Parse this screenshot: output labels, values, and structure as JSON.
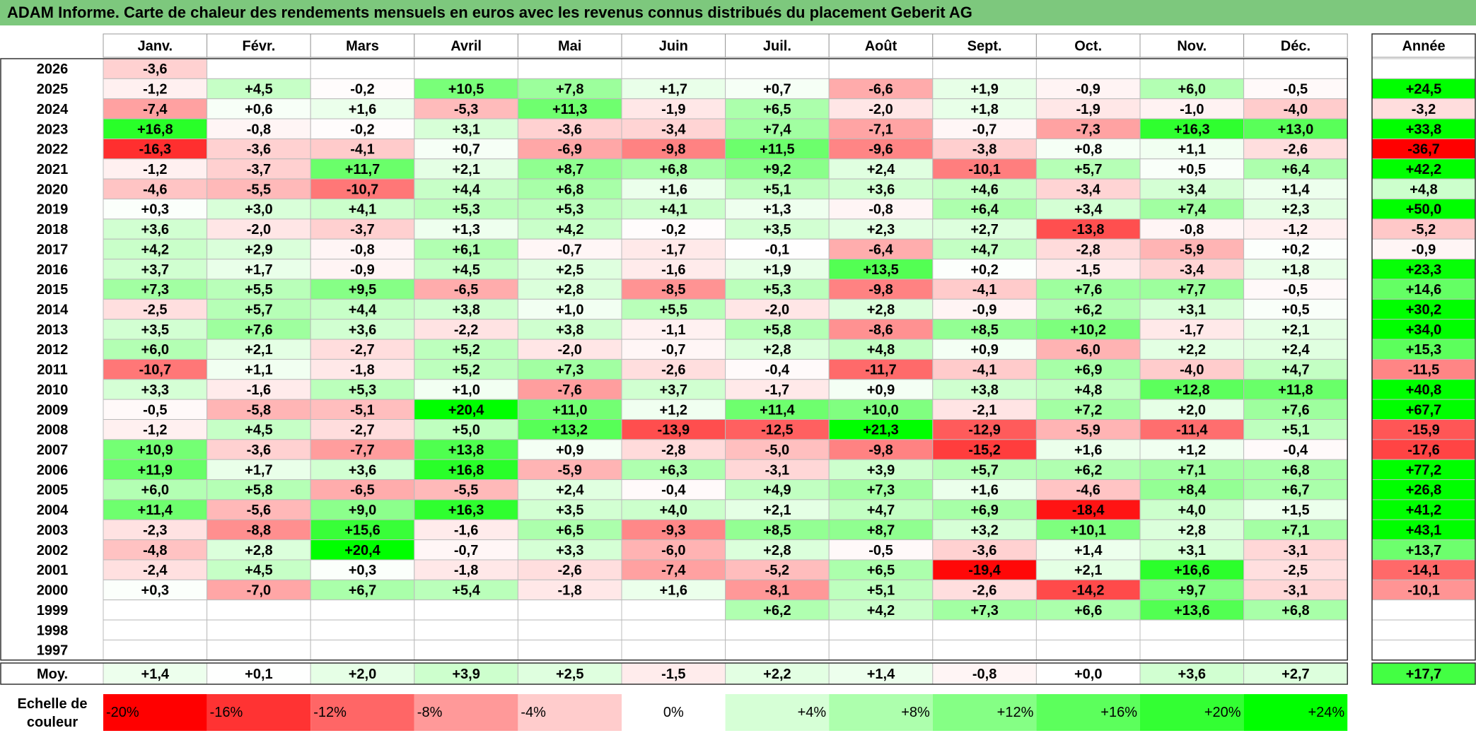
{
  "title": "ADAM Informe. Carte de chaleur des rendements mensuels en euros avec les revenus connus distribués du placement Geberit AG",
  "chart_data": {
    "type": "heatmap",
    "title": "ADAM Informe. Carte de chaleur des rendements mensuels en euros avec les revenus connus distribués du placement Geberit AG",
    "months": [
      "Janv.",
      "Févr.",
      "Mars",
      "Avril",
      "Mai",
      "Juin",
      "Juil.",
      "Août",
      "Sept.",
      "Oct.",
      "Nov.",
      "Déc."
    ],
    "year_header": "Année",
    "rows": [
      {
        "year": "2026",
        "values": [
          "-3,6",
          "",
          "",
          "",
          "",
          "",
          "",
          "",
          "",
          "",
          "",
          ""
        ],
        "annual": ""
      },
      {
        "year": "2025",
        "values": [
          "-1,2",
          "+4,5",
          "-0,2",
          "+10,5",
          "+7,8",
          "+1,7",
          "+0,7",
          "-6,6",
          "+1,9",
          "-0,9",
          "+6,0",
          "-0,5"
        ],
        "annual": "+24,5"
      },
      {
        "year": "2024",
        "values": [
          "-7,4",
          "+0,6",
          "+1,6",
          "-5,3",
          "+11,3",
          "-1,9",
          "+6,5",
          "-2,0",
          "+1,8",
          "-1,9",
          "-1,0",
          "-4,0"
        ],
        "annual": "-3,2"
      },
      {
        "year": "2023",
        "values": [
          "+16,8",
          "-0,8",
          "-0,2",
          "+3,1",
          "-3,6",
          "-3,4",
          "+7,4",
          "-7,1",
          "-0,7",
          "-7,3",
          "+16,3",
          "+13,0"
        ],
        "annual": "+33,8"
      },
      {
        "year": "2022",
        "values": [
          "-16,3",
          "-3,6",
          "-4,1",
          "+0,7",
          "-6,9",
          "-9,8",
          "+11,5",
          "-9,6",
          "-3,8",
          "+0,8",
          "+1,1",
          "-2,6"
        ],
        "annual": "-36,7"
      },
      {
        "year": "2021",
        "values": [
          "-1,2",
          "-3,7",
          "+11,7",
          "+2,1",
          "+8,7",
          "+6,8",
          "+9,2",
          "+2,4",
          "-10,1",
          "+5,7",
          "+0,5",
          "+6,4"
        ],
        "annual": "+42,2"
      },
      {
        "year": "2020",
        "values": [
          "-4,6",
          "-5,5",
          "-10,7",
          "+4,4",
          "+6,8",
          "+1,6",
          "+5,1",
          "+3,6",
          "+4,6",
          "-3,4",
          "+3,4",
          "+1,4"
        ],
        "annual": "+4,8"
      },
      {
        "year": "2019",
        "values": [
          "+0,3",
          "+3,0",
          "+4,1",
          "+5,3",
          "+5,3",
          "+4,1",
          "+1,3",
          "-0,8",
          "+6,4",
          "+3,4",
          "+7,4",
          "+2,3"
        ],
        "annual": "+50,0"
      },
      {
        "year": "2018",
        "values": [
          "+3,6",
          "-2,0",
          "-3,7",
          "+1,3",
          "+4,2",
          "-0,2",
          "+3,5",
          "+2,3",
          "+2,7",
          "-13,8",
          "-0,8",
          "-1,2"
        ],
        "annual": "-5,2"
      },
      {
        "year": "2017",
        "values": [
          "+4,2",
          "+2,9",
          "-0,8",
          "+6,1",
          "-0,7",
          "-1,7",
          "-0,1",
          "-6,4",
          "+4,7",
          "-2,8",
          "-5,9",
          "+0,2"
        ],
        "annual": "-0,9"
      },
      {
        "year": "2016",
        "values": [
          "+3,7",
          "+1,7",
          "-0,9",
          "+4,5",
          "+2,5",
          "-1,6",
          "+1,9",
          "+13,5",
          "+0,2",
          "-1,5",
          "-3,4",
          "+1,8"
        ],
        "annual": "+23,3"
      },
      {
        "year": "2015",
        "values": [
          "+7,3",
          "+5,5",
          "+9,5",
          "-6,5",
          "+2,8",
          "-8,5",
          "+5,3",
          "-9,8",
          "-4,1",
          "+7,6",
          "+7,7",
          "-0,5"
        ],
        "annual": "+14,6"
      },
      {
        "year": "2014",
        "values": [
          "-2,5",
          "+5,7",
          "+4,4",
          "+3,8",
          "+1,0",
          "+5,5",
          "-2,0",
          "+2,8",
          "-0,9",
          "+6,2",
          "+3,1",
          "+0,5"
        ],
        "annual": "+30,2"
      },
      {
        "year": "2013",
        "values": [
          "+3,5",
          "+7,6",
          "+3,6",
          "-2,2",
          "+3,8",
          "-1,1",
          "+5,8",
          "-8,6",
          "+8,5",
          "+10,2",
          "-1,7",
          "+2,1"
        ],
        "annual": "+34,0"
      },
      {
        "year": "2012",
        "values": [
          "+6,0",
          "+2,1",
          "-2,7",
          "+5,2",
          "-2,0",
          "-0,7",
          "+2,8",
          "+4,8",
          "+0,9",
          "-6,0",
          "+2,2",
          "+2,4"
        ],
        "annual": "+15,3"
      },
      {
        "year": "2011",
        "values": [
          "-10,7",
          "+1,1",
          "-1,8",
          "+5,2",
          "+7,3",
          "-2,6",
          "-0,4",
          "-11,7",
          "-4,1",
          "+6,9",
          "-4,0",
          "+4,7"
        ],
        "annual": "-11,5"
      },
      {
        "year": "2010",
        "values": [
          "+3,3",
          "-1,6",
          "+5,3",
          "+1,0",
          "-7,6",
          "+3,7",
          "-1,7",
          "+0,9",
          "+3,8",
          "+4,8",
          "+12,8",
          "+11,8"
        ],
        "annual": "+40,8"
      },
      {
        "year": "2009",
        "values": [
          "-0,5",
          "-5,8",
          "-5,1",
          "+20,4",
          "+11,0",
          "+1,2",
          "+11,4",
          "+10,0",
          "-2,1",
          "+7,2",
          "+2,0",
          "+7,6"
        ],
        "annual": "+67,7"
      },
      {
        "year": "2008",
        "values": [
          "-1,2",
          "+4,5",
          "-2,7",
          "+5,0",
          "+13,2",
          "-13,9",
          "-12,5",
          "+21,3",
          "-12,9",
          "-5,9",
          "-11,4",
          "+5,1"
        ],
        "annual": "-15,9"
      },
      {
        "year": "2007",
        "values": [
          "+10,9",
          "-3,6",
          "-7,7",
          "+13,8",
          "+0,9",
          "-2,8",
          "-5,0",
          "-9,8",
          "-15,2",
          "+1,6",
          "+1,2",
          "-0,4"
        ],
        "annual": "-17,6"
      },
      {
        "year": "2006",
        "values": [
          "+11,9",
          "+1,7",
          "+3,6",
          "+16,8",
          "-5,9",
          "+6,3",
          "-3,1",
          "+3,9",
          "+5,7",
          "+6,2",
          "+7,1",
          "+6,8"
        ],
        "annual": "+77,2"
      },
      {
        "year": "2005",
        "values": [
          "+6,0",
          "+5,8",
          "-6,5",
          "-5,5",
          "+2,4",
          "-0,4",
          "+4,9",
          "+7,3",
          "+1,6",
          "-4,6",
          "+8,4",
          "+6,7"
        ],
        "annual": "+26,8"
      },
      {
        "year": "2004",
        "values": [
          "+11,4",
          "-5,6",
          "+9,0",
          "+16,3",
          "+3,5",
          "+4,0",
          "+2,1",
          "+4,7",
          "+6,9",
          "-18,4",
          "+4,0",
          "+1,5"
        ],
        "annual": "+41,2"
      },
      {
        "year": "2003",
        "values": [
          "-2,3",
          "-8,8",
          "+15,6",
          "-1,6",
          "+6,5",
          "-9,3",
          "+8,5",
          "+8,7",
          "+3,2",
          "+10,1",
          "+2,8",
          "+7,1"
        ],
        "annual": "+43,1"
      },
      {
        "year": "2002",
        "values": [
          "-4,8",
          "+2,8",
          "+20,4",
          "-0,7",
          "+3,3",
          "-6,0",
          "+2,8",
          "-0,5",
          "-3,6",
          "+1,4",
          "+3,1",
          "-3,1"
        ],
        "annual": "+13,7"
      },
      {
        "year": "2001",
        "values": [
          "-2,4",
          "+4,5",
          "+0,3",
          "-1,8",
          "-2,6",
          "-7,4",
          "-5,2",
          "+6,5",
          "-19,4",
          "+2,1",
          "+16,6",
          "-2,5"
        ],
        "annual": "-14,1"
      },
      {
        "year": "2000",
        "values": [
          "+0,3",
          "-7,0",
          "+6,7",
          "+5,4",
          "-1,8",
          "+1,6",
          "-8,1",
          "+5,1",
          "-2,6",
          "-14,2",
          "+9,7",
          "-3,1"
        ],
        "annual": "-10,1"
      },
      {
        "year": "1999",
        "values": [
          "",
          "",
          "",
          "",
          "",
          "",
          "+6,2",
          "+4,2",
          "+7,3",
          "+6,6",
          "+13,6",
          "+6,8"
        ],
        "annual": ""
      },
      {
        "year": "1998",
        "values": [
          "",
          "",
          "",
          "",
          "",
          "",
          "",
          "",
          "",
          "",
          "",
          ""
        ],
        "annual": ""
      },
      {
        "year": "1997",
        "values": [
          "",
          "",
          "",
          "",
          "",
          "",
          "",
          "",
          "",
          "",
          "",
          ""
        ],
        "annual": ""
      }
    ],
    "average": {
      "label": "Moy.",
      "values": [
        "+1,4",
        "+0,1",
        "+2,0",
        "+3,9",
        "+2,5",
        "-1,5",
        "+2,2",
        "+1,4",
        "-0,8",
        "+0,0",
        "+3,6",
        "+2,7"
      ],
      "annual": "+17,7"
    },
    "color_scale": {
      "label_line1": "Echelle de",
      "label_line2": "couleur",
      "stops": [
        {
          "label": "-20%",
          "value": -20,
          "color": "#ff0000"
        },
        {
          "label": "-16%",
          "value": -16,
          "color": "#ff3333"
        },
        {
          "label": "-12%",
          "value": -12,
          "color": "#ff6666"
        },
        {
          "label": "-8%",
          "value": -8,
          "color": "#ff9999"
        },
        {
          "label": "-4%",
          "value": -4,
          "color": "#ffcccc"
        },
        {
          "label": "0%",
          "value": 0,
          "color": "#ffffff"
        },
        {
          "label": "+4%",
          "value": 4,
          "color": "#d6ffd6"
        },
        {
          "label": "+8%",
          "value": 8,
          "color": "#adffad"
        },
        {
          "label": "+12%",
          "value": 12,
          "color": "#85ff85"
        },
        {
          "label": "+16%",
          "value": 16,
          "color": "#5cff5c"
        },
        {
          "label": "+20%",
          "value": 20,
          "color": "#33ff33"
        },
        {
          "label": "+24%",
          "value": 24,
          "color": "#00ff00"
        }
      ]
    },
    "colors": {
      "title_bar": "#7dc87d",
      "negative_max": "#ff0000",
      "positive_max": "#00ff00",
      "neutral": "#ffffff"
    }
  }
}
